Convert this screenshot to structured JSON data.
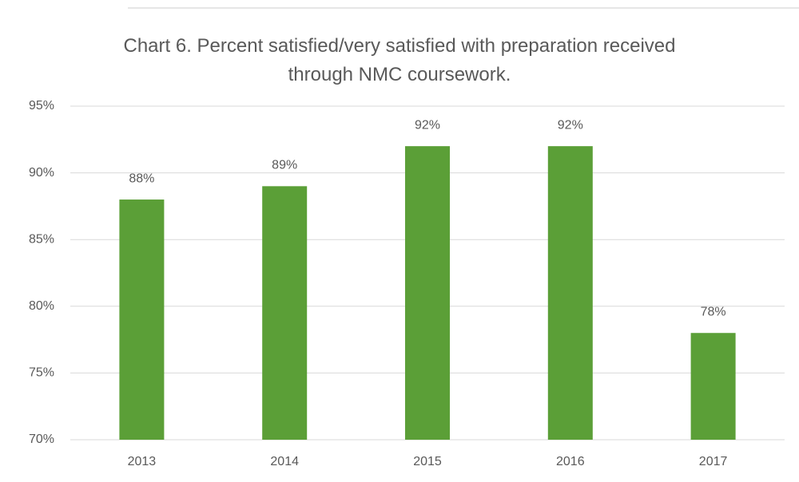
{
  "chart_data": {
    "type": "bar",
    "title": "Chart 6. Percent satisfied/very satisfied with preparation received through NMC coursework.",
    "categories": [
      "2013",
      "2014",
      "2015",
      "2016",
      "2017"
    ],
    "values": [
      88,
      89,
      92,
      92,
      78
    ],
    "value_labels": [
      "88%",
      "89%",
      "92%",
      "92%",
      "78%"
    ],
    "color": "#5b9f37",
    "ylim": [
      70,
      95
    ],
    "yticks": [
      {
        "value": 70,
        "label": "70%"
      },
      {
        "value": 75,
        "label": "75%"
      },
      {
        "value": 80,
        "label": "80%"
      },
      {
        "value": 85,
        "label": "85%"
      },
      {
        "value": 90,
        "label": "90%"
      },
      {
        "value": 95,
        "label": "95%"
      }
    ],
    "grid": true
  }
}
